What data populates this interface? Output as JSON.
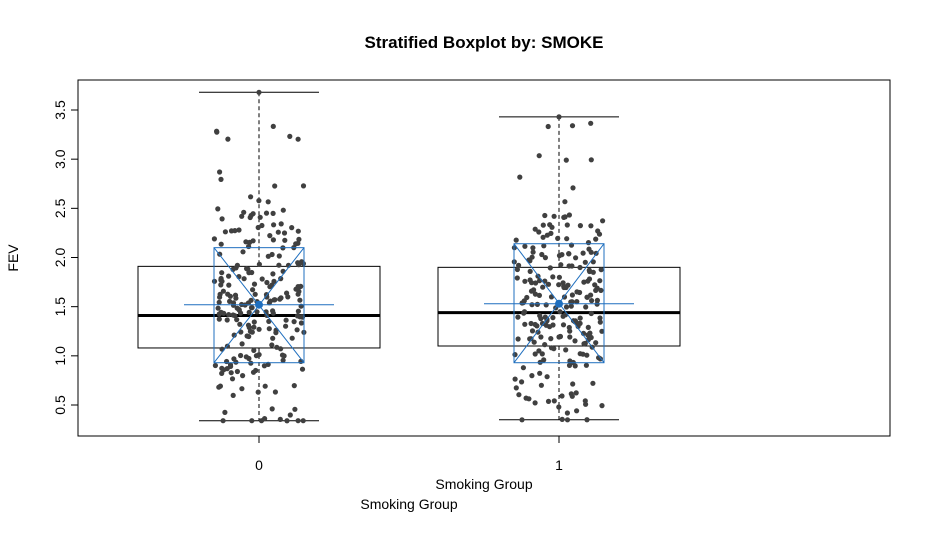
{
  "chart_data": {
    "type": "boxplot",
    "title": "Stratified Boxplot by: SMOKE",
    "ylabel": "FEV",
    "xlabel": "Smoking Group",
    "xlabel_secondary": "Smoking Group",
    "ylim": [
      0.2,
      3.75
    ],
    "yticks": [
      0.5,
      1.0,
      1.5,
      2.0,
      2.5,
      3.0,
      3.5
    ],
    "ytick_labels": [
      "0.5",
      "1.0",
      "1.5",
      "2.0",
      "2.5",
      "3.0",
      "3.5"
    ],
    "categories": [
      "0",
      "1"
    ],
    "grid": false,
    "colors": {
      "box": "#000000",
      "median": "#000000",
      "points": "#404040",
      "overlay": "#1f6fbf"
    },
    "boxes": [
      {
        "label": "0",
        "min": 0.34,
        "q1": 1.08,
        "median": 1.41,
        "q3": 1.91,
        "max": 3.68,
        "mean": 1.52,
        "mean_sd": [
          0.93,
          2.1
        ],
        "ci_half_width": 0.25
      },
      {
        "label": "1",
        "min": 0.35,
        "q1": 1.1,
        "median": 1.44,
        "q3": 1.9,
        "max": 3.43,
        "mean": 1.53,
        "mean_sd": [
          0.93,
          2.14
        ],
        "ci_half_width": 0.25
      }
    ]
  }
}
